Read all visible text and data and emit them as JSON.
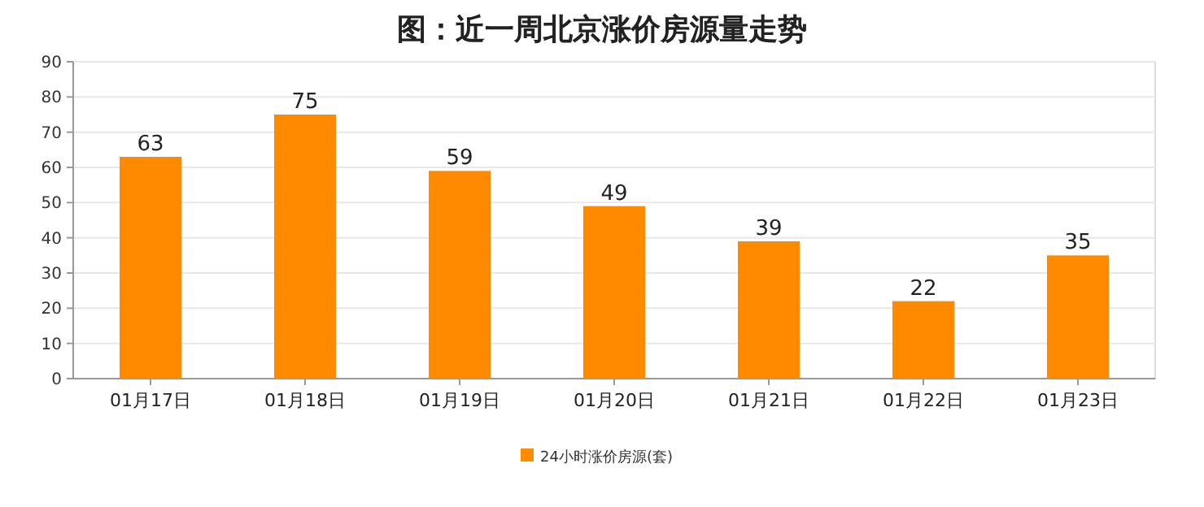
{
  "chart_data": {
    "type": "bar",
    "title": "图：近一周北京涨价房源量走势",
    "categories": [
      "01月17日",
      "01月18日",
      "01月19日",
      "01月20日",
      "01月21日",
      "01月22日",
      "01月23日"
    ],
    "series": [
      {
        "name": "24小时涨价房源(套)",
        "color": "#ff8a00",
        "values": [
          63,
          75,
          59,
          49,
          39,
          22,
          35
        ]
      }
    ],
    "ylim": [
      0,
      90
    ],
    "yticks": [
      0,
      10,
      20,
      30,
      40,
      50,
      60,
      70,
      80,
      90
    ],
    "grid": "y",
    "legend": "bottom",
    "data_labels": true
  }
}
